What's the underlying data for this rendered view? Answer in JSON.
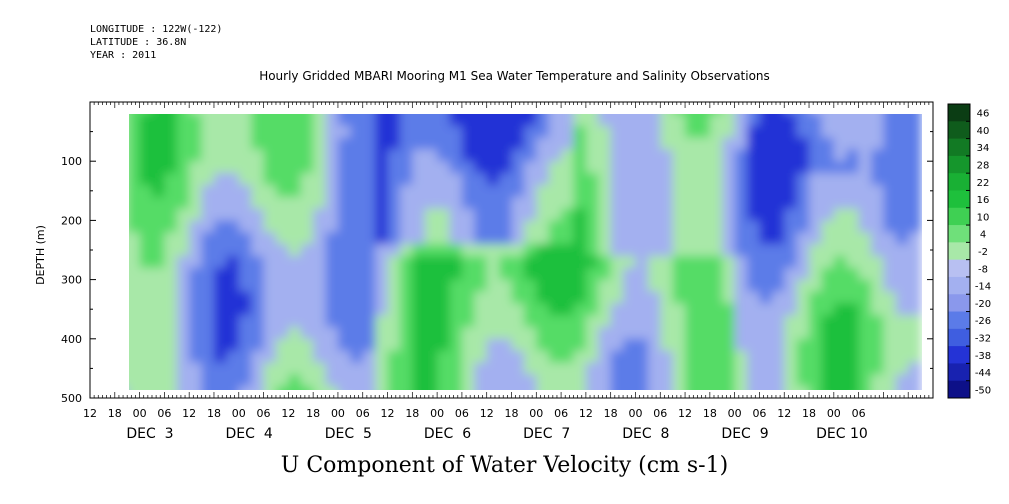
{
  "header": {
    "longitude": "LONGITUDE : 122W(-122)",
    "latitude": "LATITUDE : 36.8N",
    "year": "YEAR : 2011"
  },
  "chart_data": {
    "type": "heatmap",
    "title": "Hourly Gridded MBARI Mooring M1 Sea Water Temperature and Salinity Observations",
    "xlabel": "",
    "ylabel": "DEPTH (m)",
    "variable_label": "U Component of Water Velocity (cm s-1)",
    "y_reversed": true,
    "ylim": [
      500,
      0
    ],
    "y_ticks": [
      100,
      200,
      300,
      400,
      500
    ],
    "data_extent": {
      "depth": [
        20,
        490
      ],
      "time_hours_from_dec2_18": [
        0,
        189
      ]
    },
    "x_hour_labels": [
      "12",
      "18",
      "00",
      "06",
      "12",
      "18",
      "00",
      "06",
      "12",
      "18",
      "00",
      "06",
      "12",
      "18",
      "00",
      "06",
      "12",
      "18",
      "00",
      "06",
      "12",
      "18",
      "00",
      "06",
      "12",
      "18",
      "00",
      "06",
      "12",
      "18",
      "00",
      "06"
    ],
    "x_day_labels": [
      "DEC  3",
      "DEC  4",
      "DEC  5",
      "DEC  6",
      "DEC  7",
      "DEC  8",
      "DEC  9",
      "DEC 10"
    ],
    "colorbar_levels": [
      "46",
      "40",
      "34",
      "28",
      "22",
      "16",
      "10",
      "4",
      "-2",
      "-8",
      "-14",
      "-20",
      "-26",
      "-32",
      "-38",
      "-44",
      "-50"
    ],
    "colors": {
      "strong_neg": "#2433d6",
      "neg": "#5b7be8",
      "weak_neg": "#a3b0f0",
      "weak_pos": "#a8e8a8",
      "pos": "#55dc66",
      "strong_pos": "#1ec03c"
    },
    "grid": false
  }
}
